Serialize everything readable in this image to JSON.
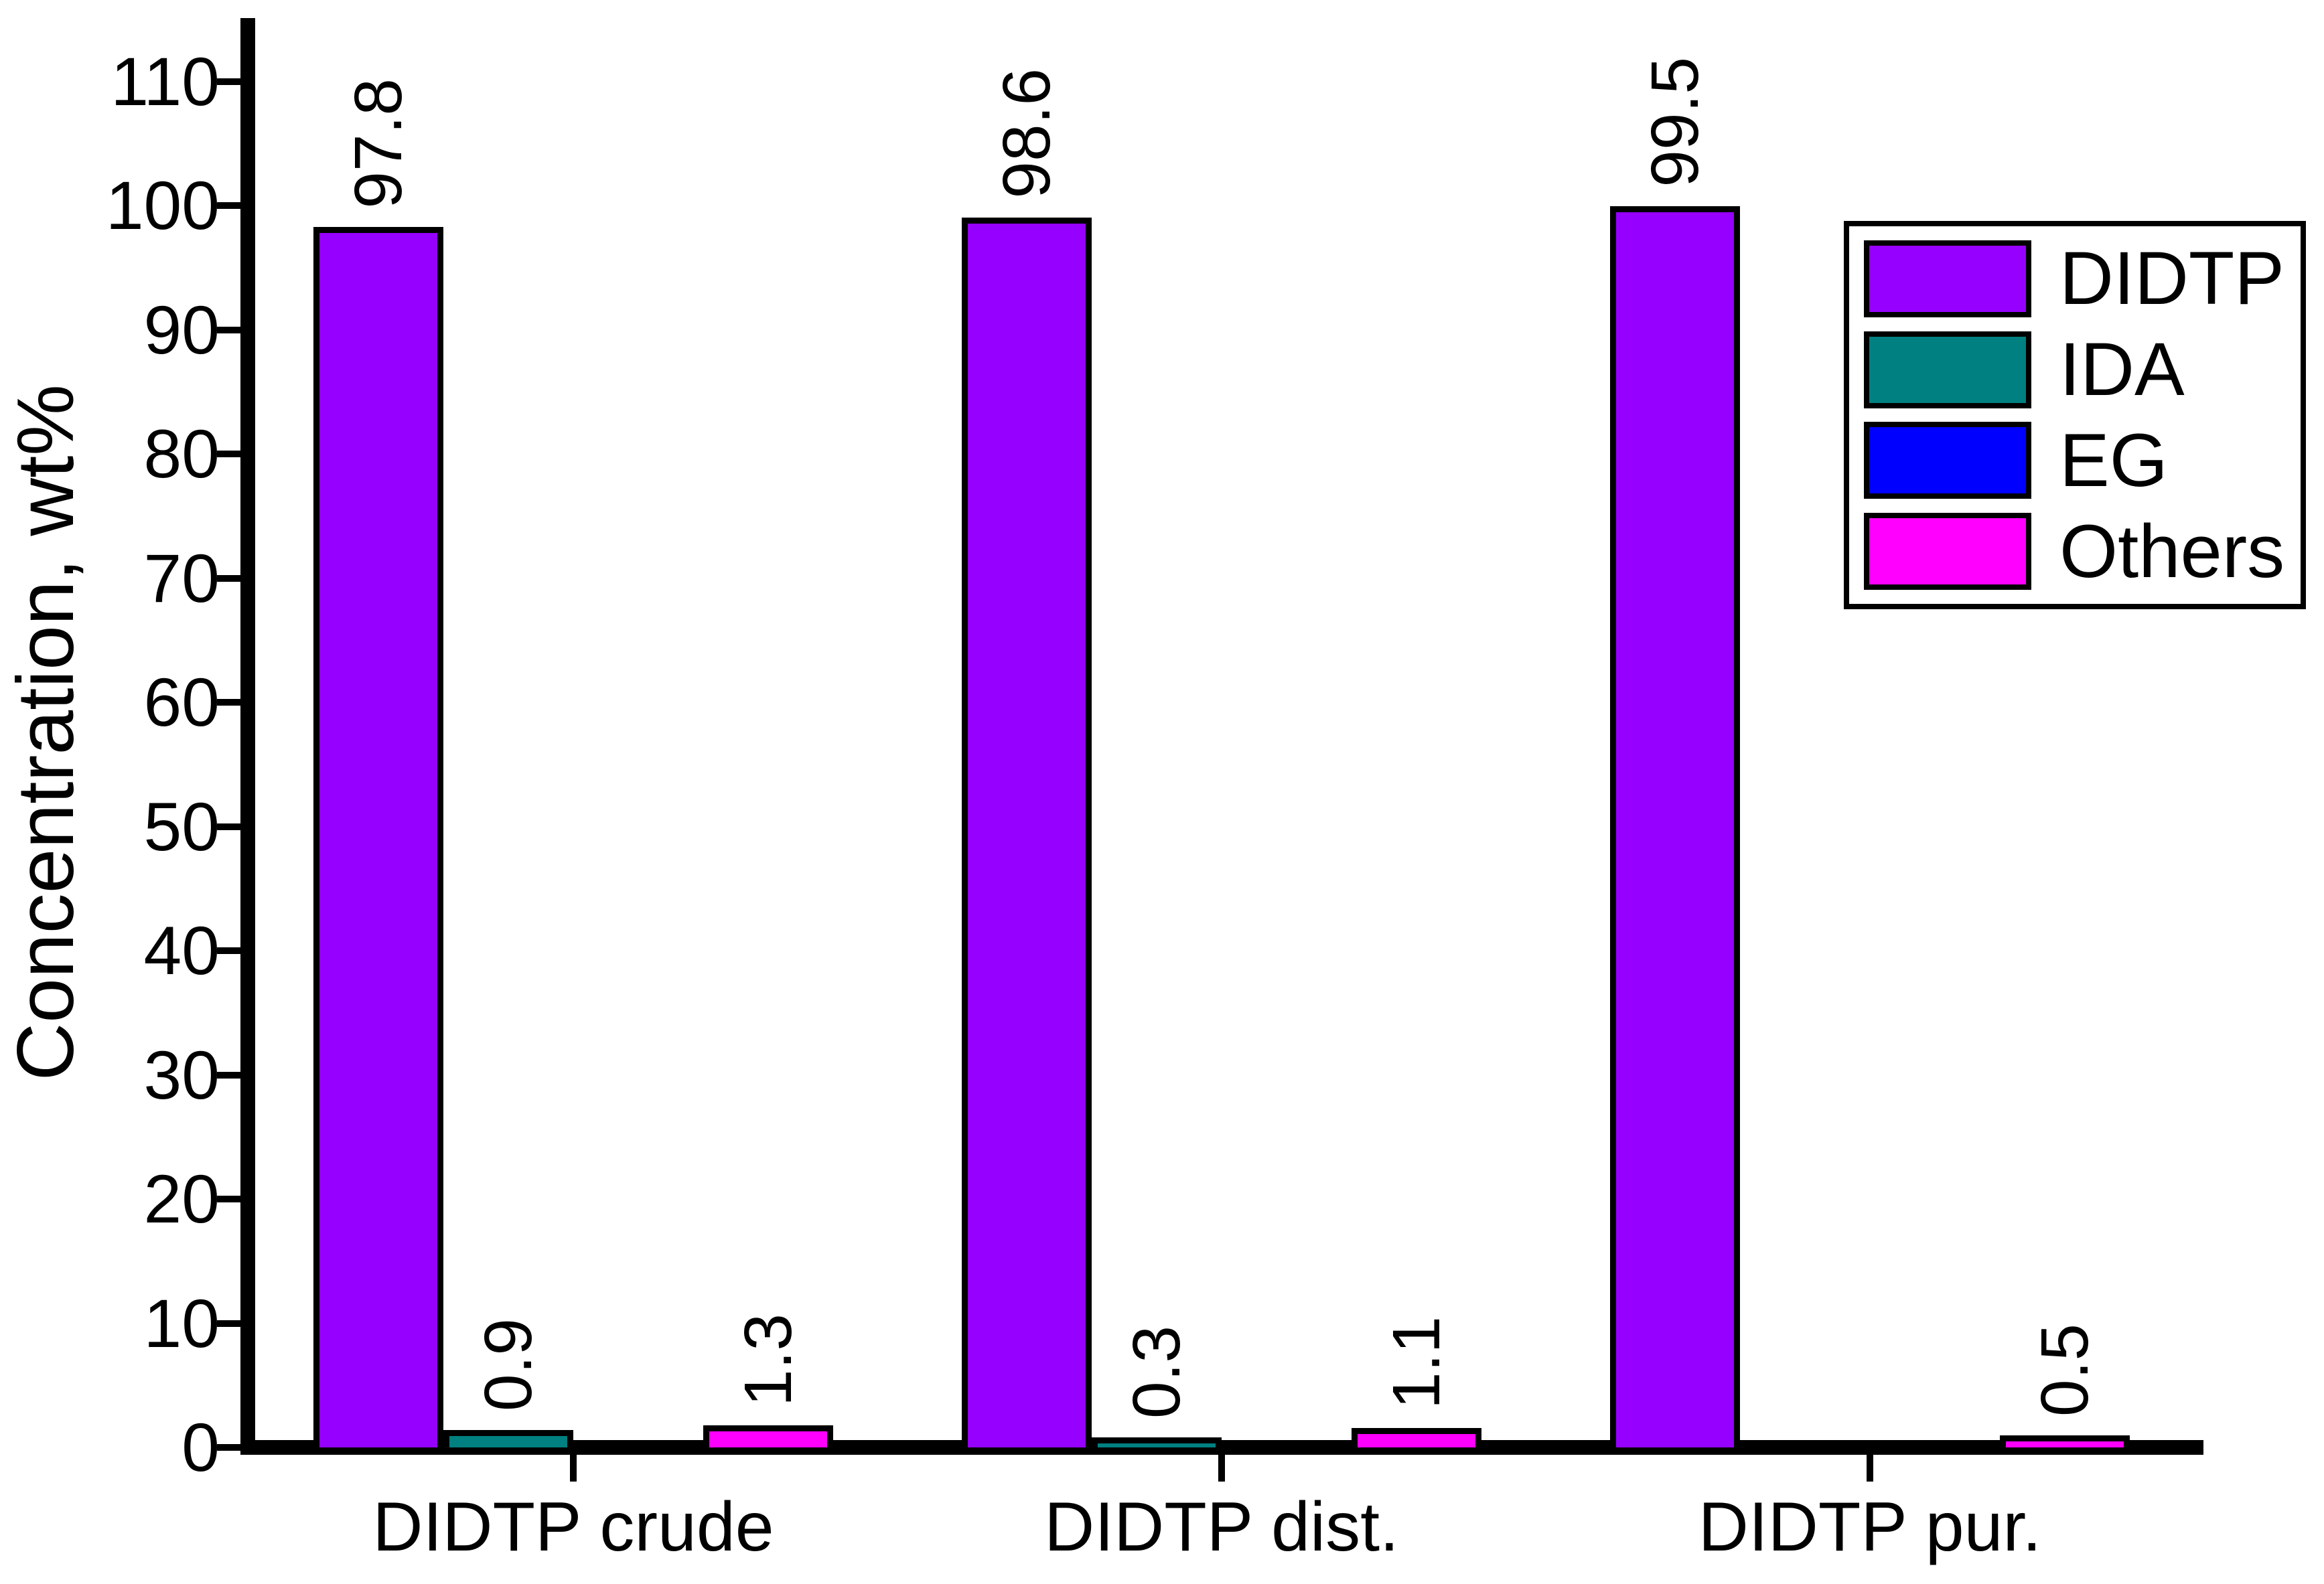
{
  "figure": {
    "background": "#ffffff",
    "text_color": "#000000"
  },
  "chart_data": {
    "type": "bar",
    "title": "",
    "xlabel": "",
    "ylabel": "Concentration, wt%",
    "categories": [
      "DIDTP crude",
      "DIDTP dist.",
      "DIDTP pur."
    ],
    "series": [
      {
        "name": "DIDTP",
        "color": "#9600ff",
        "values": [
          97.8,
          98.6,
          99.5
        ],
        "labels": [
          "97.8",
          "98.6",
          "99.5"
        ]
      },
      {
        "name": "IDA",
        "color": "#008080",
        "values": [
          0.9,
          0.3,
          0
        ],
        "labels": [
          "0.9",
          "0.3",
          null
        ]
      },
      {
        "name": "EG",
        "color": "#0000ff",
        "values": [
          0,
          0,
          0
        ],
        "labels": [
          null,
          null,
          null
        ]
      },
      {
        "name": "Others",
        "color": "#ff00ff",
        "values": [
          1.3,
          1.1,
          0.5
        ],
        "labels": [
          "1.3",
          "1.1",
          "0.5"
        ]
      }
    ],
    "ylim": [
      0,
      115
    ],
    "yticks": [
      0,
      10,
      20,
      30,
      40,
      50,
      60,
      70,
      80,
      90,
      100,
      110
    ],
    "grid": false,
    "legend_position": "upper right",
    "bar_outline_color": "#000000"
  }
}
